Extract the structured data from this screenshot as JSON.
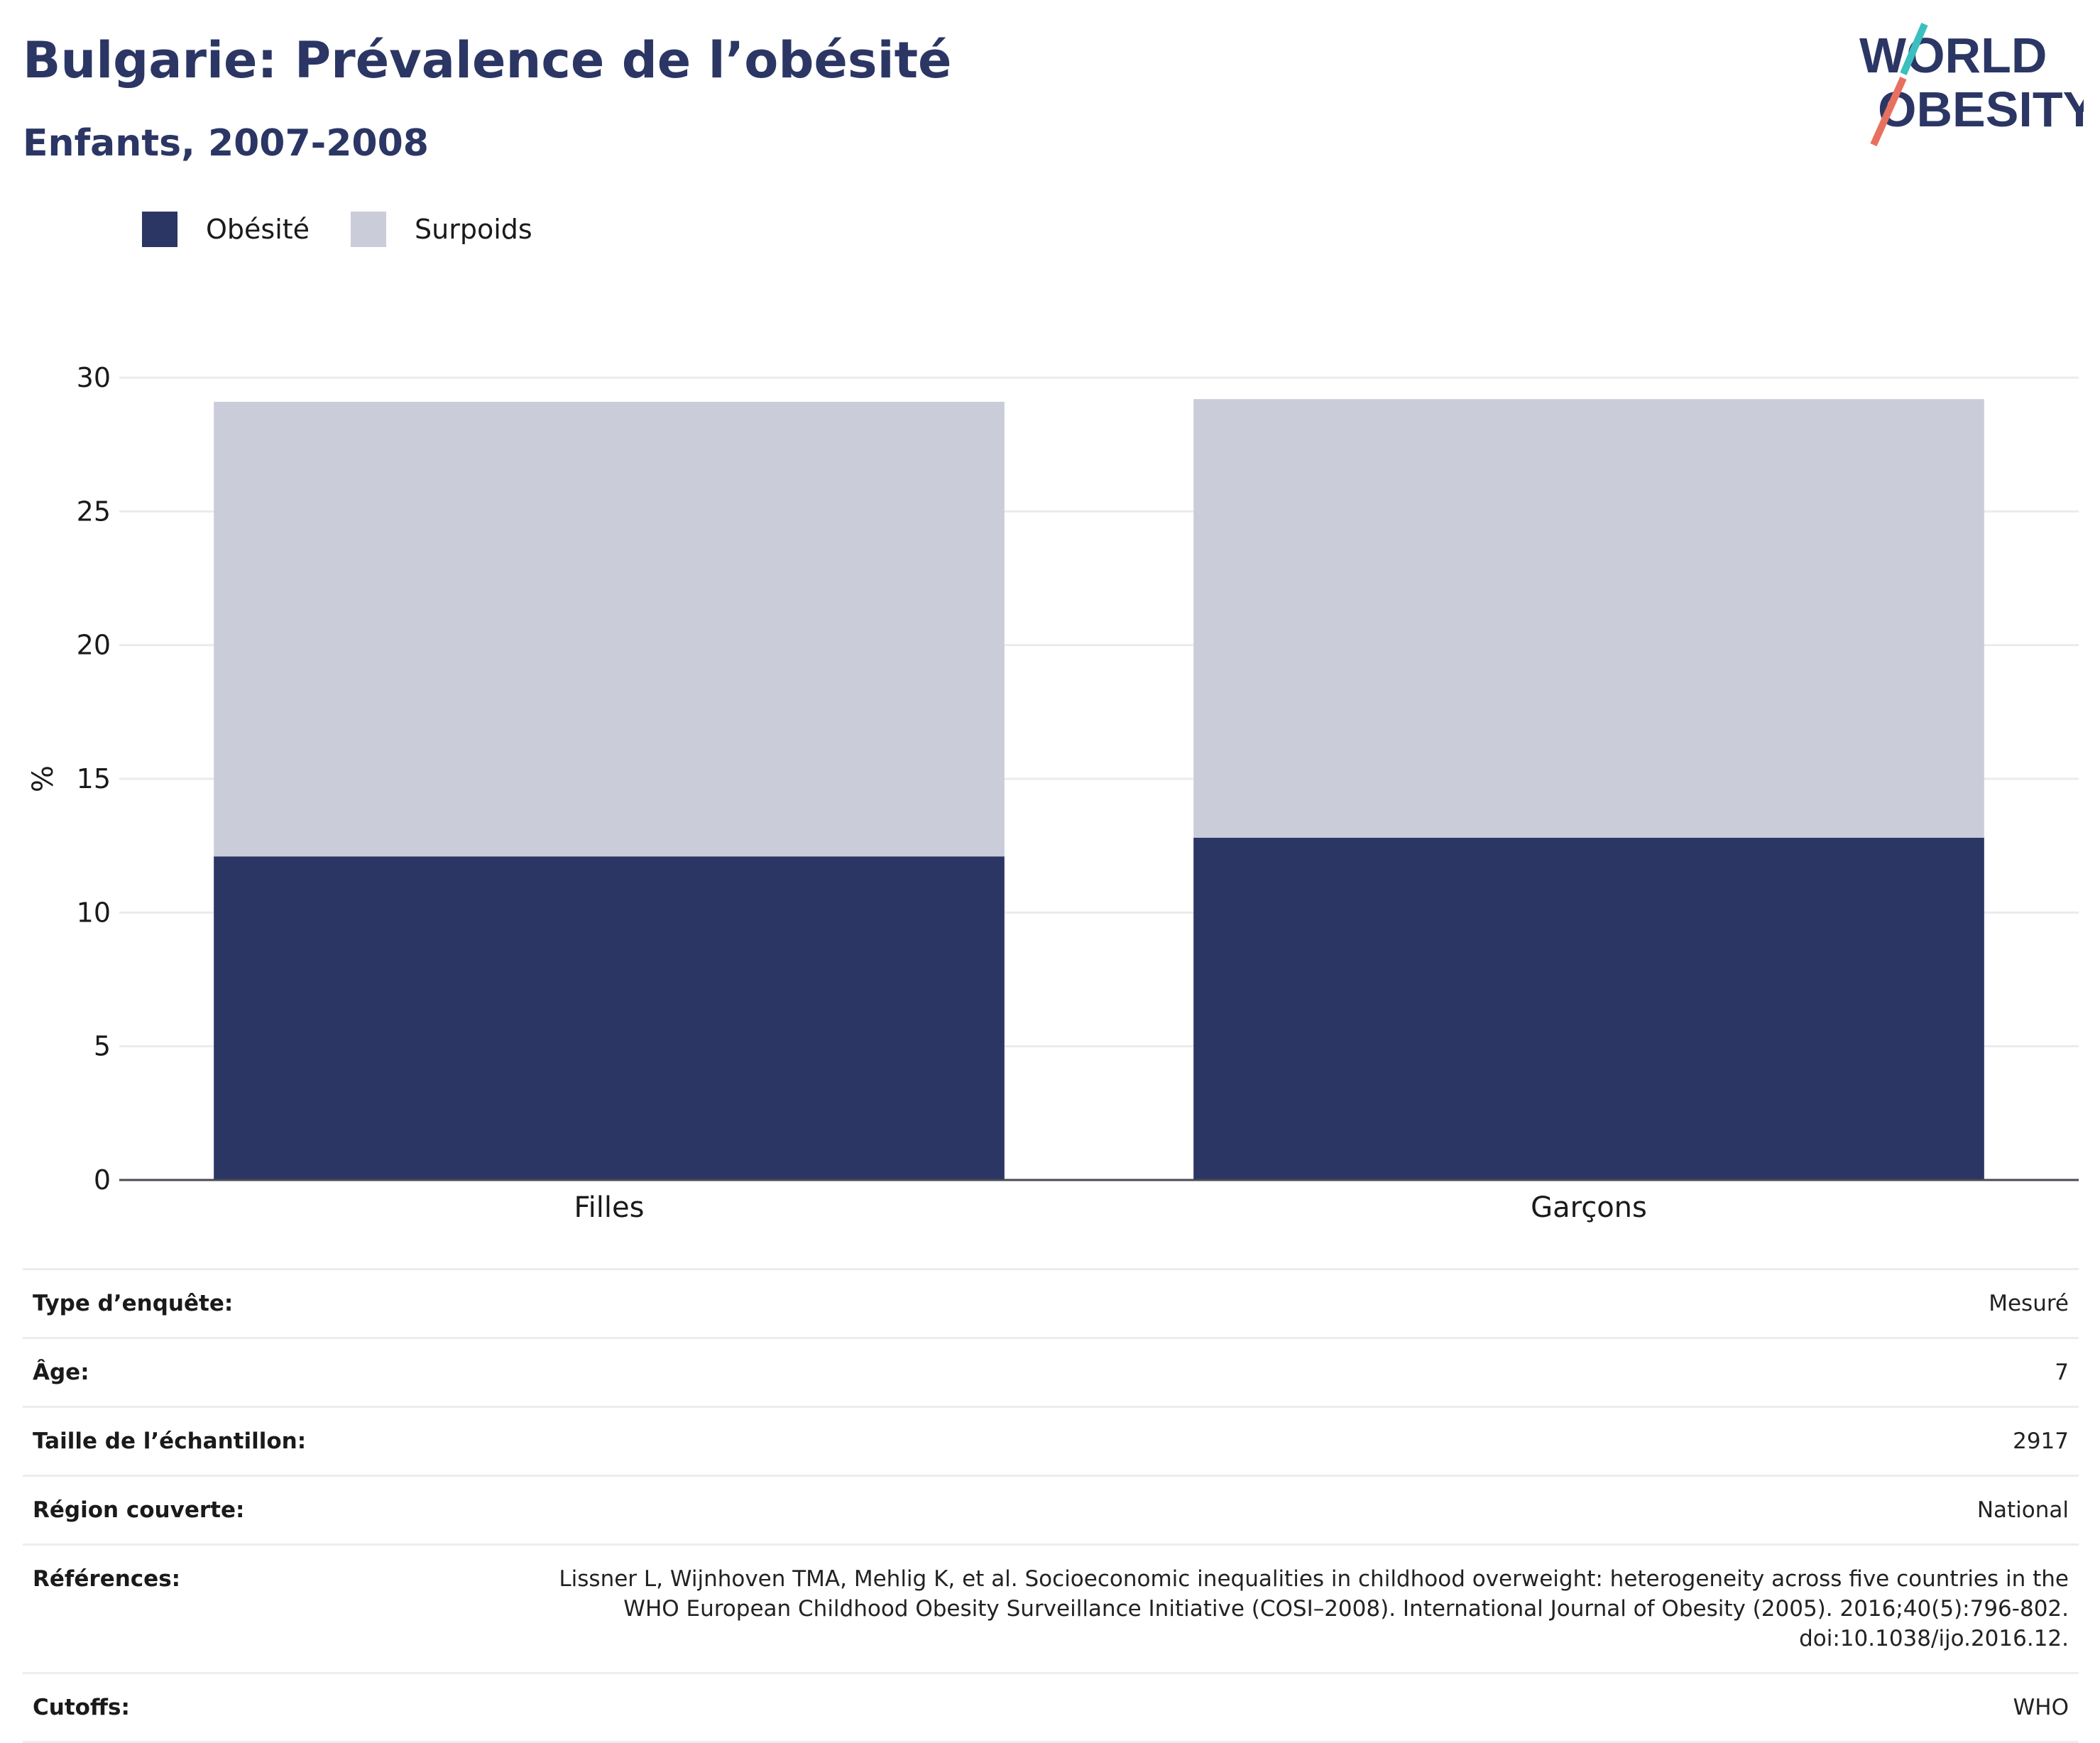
{
  "header": {
    "title": "Bulgarie: Prévalence de l’obésité",
    "subtitle": "Enfants, 2007-2008"
  },
  "logo": {
    "line1": "WORLD",
    "line2": "OBESITY",
    "text_color": "#2b3664",
    "slash_top_color": "#3bbfbf",
    "slash_bottom_color": "#e8705f"
  },
  "legend": [
    {
      "label": "Obésité",
      "color": "#2b3664"
    },
    {
      "label": "Surpoids",
      "color": "#cacdd9"
    }
  ],
  "chart_data": {
    "type": "bar",
    "stacked": true,
    "categories": [
      "Filles",
      "Garçons"
    ],
    "series": [
      {
        "name": "Obésité",
        "color": "#2b3664",
        "values": [
          12.1,
          12.8
        ]
      },
      {
        "name": "Surpoids",
        "color": "#cacdd9",
        "values": [
          17.0,
          16.4
        ]
      }
    ],
    "ylabel": "%",
    "ylim": [
      0,
      30
    ],
    "yticks": [
      0,
      5,
      10,
      15,
      20,
      25,
      30
    ],
    "grid": true,
    "legend_position": "top-left"
  },
  "info": [
    {
      "key": "Type d’enquête:",
      "value": [
        "Mesuré"
      ]
    },
    {
      "key": "Âge:",
      "value": [
        "7"
      ]
    },
    {
      "key": "Taille de l’échantillon:",
      "value": [
        "2917"
      ]
    },
    {
      "key": "Région couverte:",
      "value": [
        "National"
      ]
    },
    {
      "key": "Références:",
      "value": [
        "Lissner L, Wijnhoven TMA, Mehlig K, et al. Socioeconomic inequalities in childhood overweight: heterogeneity across five countries in the",
        "WHO European Childhood Obesity Surveillance Initiative (COSI–2008). International Journal of Obesity (2005). 2016;40(5):796-802.",
        "doi:10.1038/ijo.2016.12."
      ]
    },
    {
      "key": "Cutoffs:",
      "value": [
        "WHO"
      ]
    }
  ]
}
